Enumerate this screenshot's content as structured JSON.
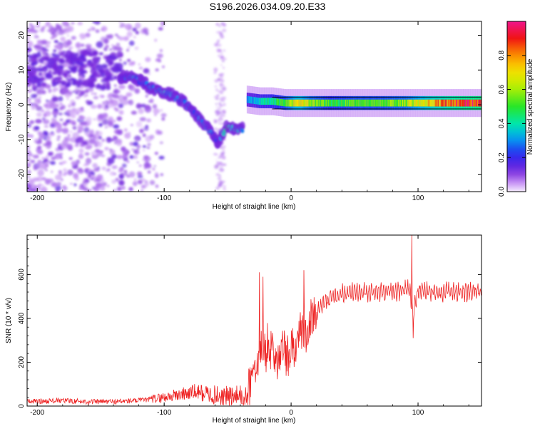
{
  "title": "S196.2026.034.09.20.E33",
  "chart_data": [
    {
      "type": "heatmap",
      "xlabel": "Height of straight line (km)",
      "ylabel": "Frequency (Hz)",
      "xlim": [
        -208,
        150
      ],
      "ylim": [
        -25,
        24
      ],
      "xticks": [
        -200,
        -100,
        0,
        100
      ],
      "xtick_labels": [
        "-200",
        "-100",
        "0",
        "100"
      ],
      "yticks": [
        20,
        10,
        0,
        -10,
        -20
      ],
      "ytick_labels": [
        "20",
        "10",
        "0",
        "-10",
        "-20"
      ],
      "colorbar": {
        "label": "Normalized spectral amplitude",
        "range": [
          0,
          1
        ],
        "ticks": [
          0.0,
          0.2,
          0.4,
          0.6,
          0.8
        ],
        "tick_labels": [
          "0.0",
          "0.2",
          "0.4",
          "0.6",
          "0.8"
        ]
      },
      "ridge": {
        "x": [
          -135,
          -125,
          -115,
          -105,
          -95,
          -85,
          -75,
          -65,
          -58,
          -50,
          -45,
          -38
        ],
        "freq": [
          8,
          8,
          6,
          4,
          3,
          1,
          -3,
          -7,
          -11,
          -6,
          -7,
          -7
        ],
        "amplitude": [
          0.15,
          0.3,
          0.25,
          0.3,
          0.3,
          0.25,
          0.25,
          0.3,
          0.2,
          0.45,
          0.35,
          0.3
        ]
      },
      "band": {
        "x": [
          -35,
          -25,
          -15,
          -5,
          5,
          15,
          30,
          50,
          70,
          90,
          110,
          130,
          150
        ],
        "freq": [
          1.5,
          1,
          1,
          0.5,
          0.5,
          0.5,
          0.5,
          0.5,
          0.5,
          0.5,
          0.5,
          0.5,
          0.5
        ],
        "amplitude": [
          0.3,
          0.4,
          0.45,
          0.55,
          0.75,
          0.6,
          0.5,
          0.55,
          0.55,
          0.6,
          0.8,
          0.9,
          0.95
        ]
      }
    },
    {
      "type": "line",
      "xlabel": "Height of straight line (km)",
      "ylabel": "SNR (10 * v/v)",
      "xlim": [
        -208,
        150
      ],
      "ylim": [
        0,
        780
      ],
      "xticks": [
        -200,
        -100,
        0,
        100
      ],
      "xtick_labels": [
        "-200",
        "-100",
        "0",
        "100"
      ],
      "yticks": [
        0,
        200,
        400,
        600
      ],
      "ytick_labels": [
        "0",
        "200",
        "400",
        "600"
      ],
      "series": [
        {
          "name": "SNR",
          "color": "#ee2222",
          "x": [
            -208,
            -180,
            -160,
            -140,
            -120,
            -105,
            -95,
            -85,
            -75,
            -65,
            -55,
            -45,
            -38,
            -34,
            -30,
            -26,
            -22,
            -18,
            -14,
            -10,
            -6,
            -2,
            2,
            6,
            10,
            15,
            20,
            25,
            30,
            40,
            50,
            60,
            70,
            80,
            88,
            93,
            96,
            100,
            110,
            120,
            130,
            140,
            150
          ],
          "y": [
            20,
            25,
            20,
            20,
            25,
            35,
            45,
            55,
            65,
            55,
            45,
            40,
            45,
            80,
            150,
            250,
            300,
            250,
            280,
            200,
            250,
            220,
            260,
            300,
            330,
            380,
            430,
            470,
            490,
            510,
            520,
            520,
            520,
            520,
            525,
            540,
            420,
            525,
            520,
            520,
            520,
            520,
            525
          ],
          "spikes": [
            {
              "x": -25,
              "y": 610
            },
            {
              "x": -22,
              "y": 590
            },
            {
              "x": 10,
              "y": 620
            },
            {
              "x": 95,
              "y": 780
            },
            {
              "x": 96,
              "y": 310
            }
          ]
        }
      ]
    }
  ]
}
